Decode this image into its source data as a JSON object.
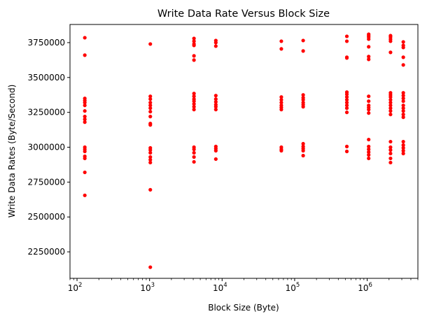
{
  "chart_data": {
    "type": "scatter",
    "title": "Write Data Rate Versus Block Size",
    "xlabel": "Block Size (Byte)",
    "ylabel": "Write Data Rates (Byte/Second)",
    "x_scale": "log",
    "xlim": [
      80,
      5000000
    ],
    "ylim": [
      2060000,
      3880000
    ],
    "x_ticks": [
      {
        "value": 100,
        "base": "10",
        "exp": "2"
      },
      {
        "value": 1000,
        "base": "10",
        "exp": "3"
      },
      {
        "value": 10000,
        "base": "10",
        "exp": "4"
      },
      {
        "value": 100000,
        "base": "10",
        "exp": "5"
      },
      {
        "value": 1000000,
        "base": "10",
        "exp": "6"
      }
    ],
    "y_ticks": [
      {
        "value": 2250000,
        "label": "2250000"
      },
      {
        "value": 2500000,
        "label": "2500000"
      },
      {
        "value": 2750000,
        "label": "2750000"
      },
      {
        "value": 3000000,
        "label": "3000000"
      },
      {
        "value": 3250000,
        "label": "3250000"
      },
      {
        "value": 3500000,
        "label": "3500000"
      },
      {
        "value": 3750000,
        "label": "3750000"
      }
    ],
    "grid": false,
    "legend": "none",
    "marker_color": "#ff0000",
    "groups": [
      {
        "x": 128,
        "y": [
          3785000,
          3660000,
          3350000,
          3335000,
          3320000,
          3300000,
          3260000,
          3220000,
          3200000,
          3180000,
          3000000,
          2985000,
          2970000,
          2935000,
          2920000,
          2820000,
          2655000
        ]
      },
      {
        "x": 1024,
        "y": [
          3740000,
          3365000,
          3345000,
          3320000,
          3300000,
          3280000,
          3255000,
          3220000,
          3170000,
          3160000,
          2995000,
          2980000,
          2960000,
          2930000,
          2910000,
          2890000,
          2695000,
          2140000
        ]
      },
      {
        "x": 4096,
        "y": [
          3780000,
          3760000,
          3740000,
          3730000,
          3655000,
          3625000,
          3385000,
          3365000,
          3345000,
          3330000,
          3310000,
          3290000,
          3270000,
          3000000,
          2985000,
          2960000,
          2930000,
          2895000
        ]
      },
      {
        "x": 8192,
        "y": [
          3765000,
          3750000,
          3725000,
          3370000,
          3345000,
          3325000,
          3305000,
          3290000,
          3270000,
          3005000,
          2990000,
          2975000,
          2915000
        ]
      },
      {
        "x": 65536,
        "y": [
          3760000,
          3705000,
          3360000,
          3340000,
          3320000,
          3300000,
          3285000,
          3270000,
          3000000,
          2985000,
          2975000
        ]
      },
      {
        "x": 131072,
        "y": [
          3765000,
          3690000,
          3375000,
          3355000,
          3340000,
          3320000,
          3305000,
          3290000,
          3025000,
          3005000,
          2990000,
          2975000,
          2940000
        ]
      },
      {
        "x": 524288,
        "y": [
          3795000,
          3760000,
          3645000,
          3640000,
          3395000,
          3380000,
          3360000,
          3340000,
          3320000,
          3300000,
          3280000,
          3250000,
          3005000,
          2970000
        ]
      },
      {
        "x": 1048576,
        "y": [
          3810000,
          3800000,
          3790000,
          3775000,
          3720000,
          3650000,
          3630000,
          3365000,
          3330000,
          3300000,
          3285000,
          3270000,
          3245000,
          3055000,
          3005000,
          2985000,
          2965000,
          2945000,
          2920000
        ]
      },
      {
        "x": 2097152,
        "y": [
          3800000,
          3790000,
          3775000,
          3760000,
          3680000,
          3390000,
          3375000,
          3360000,
          3340000,
          3320000,
          3300000,
          3280000,
          3260000,
          3235000,
          3040000,
          3000000,
          2980000,
          2955000,
          2920000,
          2890000
        ]
      },
      {
        "x": 3145728,
        "y": [
          3755000,
          3730000,
          3715000,
          3645000,
          3590000,
          3390000,
          3370000,
          3350000,
          3330000,
          3300000,
          3280000,
          3260000,
          3235000,
          3215000,
          3040000,
          3015000,
          2995000,
          2975000,
          2955000
        ]
      }
    ]
  }
}
